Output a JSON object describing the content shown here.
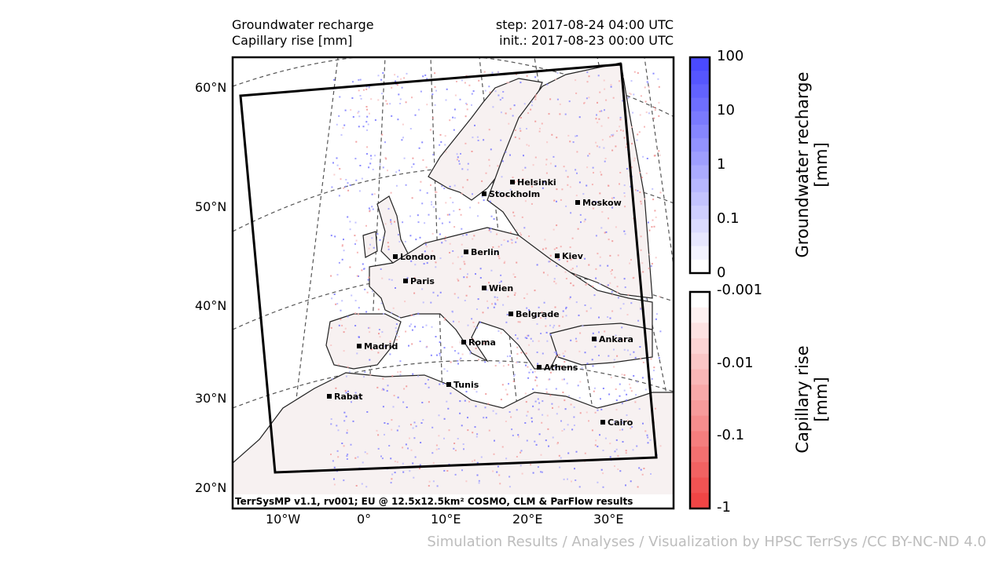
{
  "header": {
    "title_line1": "Groundwater recharge",
    "title_line2": "Capillary rise [mm]",
    "step": "step: 2017-08-24 04:00 UTC",
    "init": "init.: 2017-08-23 00:00 UTC"
  },
  "map": {
    "lat_labels": [
      "60°N",
      "50°N",
      "40°N",
      "30°N",
      "20°N"
    ],
    "lon_labels": [
      "10°W",
      "0°",
      "10°E",
      "20°E",
      "30°E"
    ],
    "cities": [
      {
        "name": "Helsinki"
      },
      {
        "name": "Stockholm"
      },
      {
        "name": "Moskow"
      },
      {
        "name": "London"
      },
      {
        "name": "Berlin"
      },
      {
        "name": "Kiev"
      },
      {
        "name": "Paris"
      },
      {
        "name": "Wien"
      },
      {
        "name": "Belgrade"
      },
      {
        "name": "Madrid"
      },
      {
        "name": "Roma"
      },
      {
        "name": "Ankara"
      },
      {
        "name": "Athens"
      },
      {
        "name": "Tunis"
      },
      {
        "name": "Rabat"
      },
      {
        "name": "Cairo"
      }
    ],
    "footer": "TerrSysMP v1.1, rv001; EU @ 12.5x12.5km² COSMO, CLM & ParFlow results"
  },
  "colorbar_recharge": {
    "label_line1": "Groundwater recharge",
    "label_line2": "[mm]",
    "ticks": [
      "100",
      "10",
      "1",
      "0.1",
      "0"
    ],
    "color": "#4a4aff"
  },
  "colorbar_capillary": {
    "label_line1": "Capillary rise",
    "label_line2": "[mm]",
    "ticks": [
      "-0.001",
      "-0.01",
      "-0.1",
      "-1"
    ],
    "color": "#f04545"
  },
  "credit": "Simulation Results / Analyses / Visualization by HPSC TerrSys /CC BY-NC-ND 4.0"
}
